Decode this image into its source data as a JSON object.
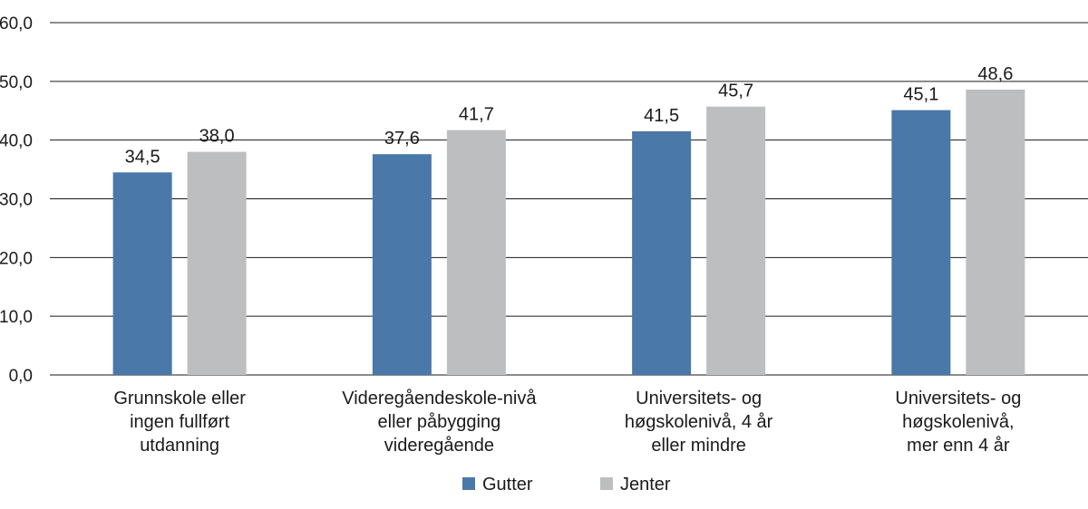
{
  "chart_data": {
    "type": "bar",
    "categories": [
      [
        "Grunnskole eller",
        "ingen fullført",
        "utdanning"
      ],
      [
        "Videregåendeskole-nivå",
        "eller påbygging",
        "videregående"
      ],
      [
        "Universitets- og",
        "høgskolenivå, 4 år",
        "eller mindre"
      ],
      [
        "Universitets- og",
        "høgskolenivå,",
        "mer enn 4 år"
      ]
    ],
    "series": [
      {
        "name": "Gutter",
        "values": [
          34.5,
          37.6,
          41.5,
          45.1
        ],
        "labels": [
          "34,5",
          "37,6",
          "41,5",
          "45,1"
        ],
        "color": "#4a78a8"
      },
      {
        "name": "Jenter",
        "values": [
          38.0,
          41.7,
          45.7,
          48.6
        ],
        "labels": [
          "38,0",
          "41,7",
          "45,7",
          "48,6"
        ],
        "color": "#bdbec0"
      }
    ],
    "ylim": [
      0,
      60
    ],
    "yticks": [
      "0,0",
      "10,0",
      "20,0",
      "30,0",
      "40,0",
      "50,0",
      "60,0"
    ],
    "grid": true,
    "legend_position": "bottom"
  }
}
